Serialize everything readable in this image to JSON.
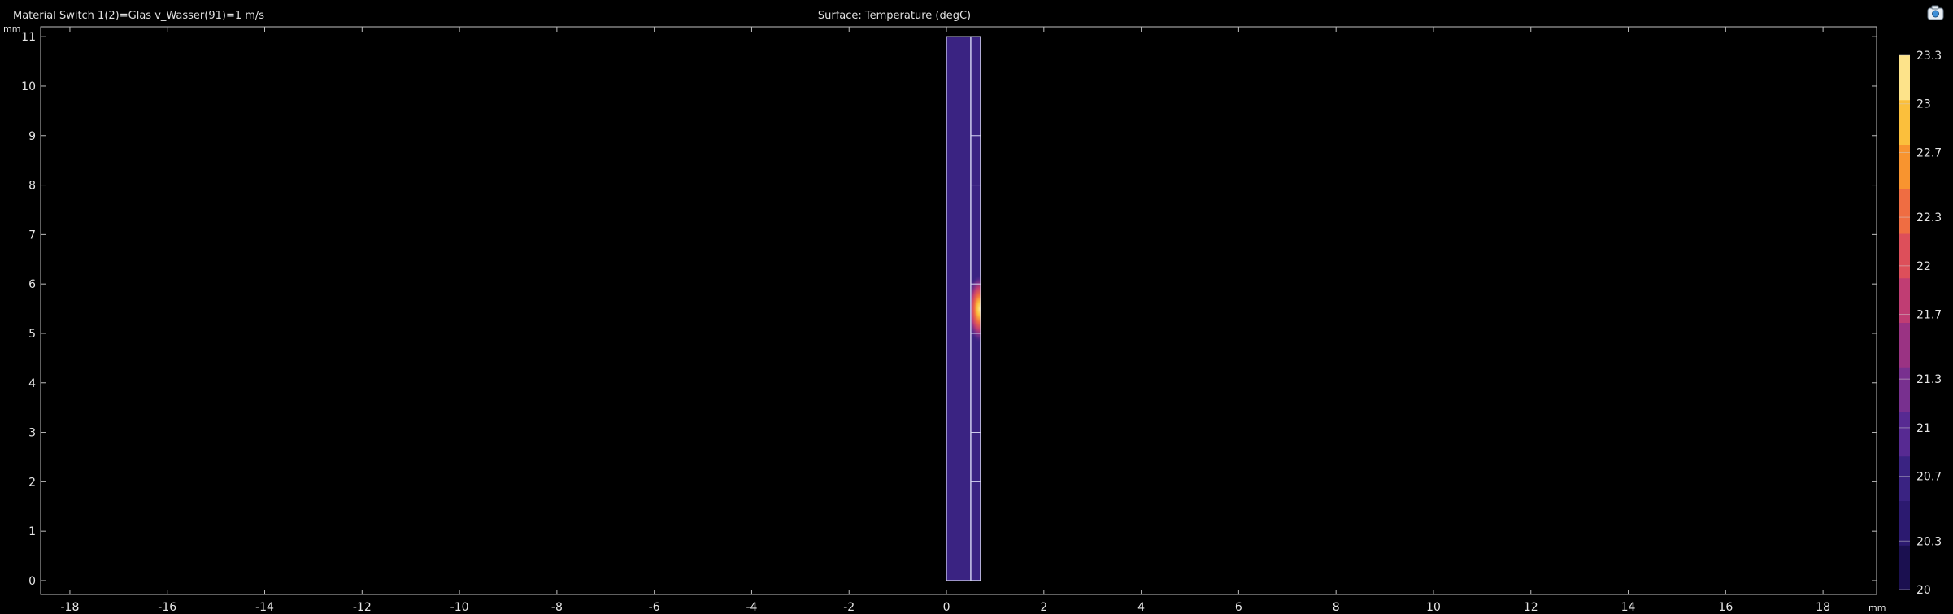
{
  "header": {
    "left_text": "Material Switch 1(2)=Glas v_Wasser(91)=1 m/s",
    "center_text": "Surface: Temperature (degC)"
  },
  "toolbar": {
    "camera_icon": "camera-view-icon"
  },
  "chart_data": {
    "type": "heatmap",
    "title": "Surface: Temperature (degC)",
    "subtitle": "Material Switch 1(2)=Glas v_Wasser(91)=1 m/s",
    "x_unit": "mm",
    "y_unit": "mm",
    "xlim": [
      -18.6,
      19.1
    ],
    "ylim": [
      -0.28,
      11.2
    ],
    "x_ticks": [
      -18,
      -16,
      -14,
      -12,
      -10,
      -8,
      -6,
      -4,
      -2,
      0,
      2,
      4,
      6,
      8,
      10,
      12,
      14,
      16,
      18
    ],
    "y_ticks": [
      0,
      1,
      2,
      3,
      4,
      5,
      6,
      7,
      8,
      9,
      10,
      11
    ],
    "grid": false,
    "geometry": {
      "inner_domain": {
        "x": [
          0,
          0.5
        ],
        "y": [
          0,
          11
        ]
      },
      "outer_domain": {
        "x": [
          0.5,
          0.7
        ],
        "y": [
          0,
          11
        ]
      },
      "boundary_marks_y": [
        2,
        3,
        5,
        6,
        8,
        9
      ]
    },
    "hotspot": {
      "x": 0.68,
      "y": 5.5,
      "peak_degC": 23.3
    },
    "base_temperature_degC": 20.5,
    "colorbar": {
      "min": 20,
      "max": 23.3,
      "tick_labels": [
        "23.3",
        "23",
        "22.7",
        "22.3",
        "22",
        "21.7",
        "21.3",
        "21",
        "20.7",
        "20.3",
        "20"
      ],
      "tick_values": [
        23.3,
        23,
        22.7,
        22.3,
        22,
        21.7,
        21.3,
        21,
        20.7,
        20.3,
        20
      ],
      "color_stops": [
        "#1b1050",
        "#2c1a70",
        "#3a2382",
        "#572a92",
        "#78308f",
        "#9a3383",
        "#c03d73",
        "#dd4f5a",
        "#ef6d42",
        "#f8942f",
        "#fbbf3c",
        "#fde38a"
      ]
    }
  }
}
